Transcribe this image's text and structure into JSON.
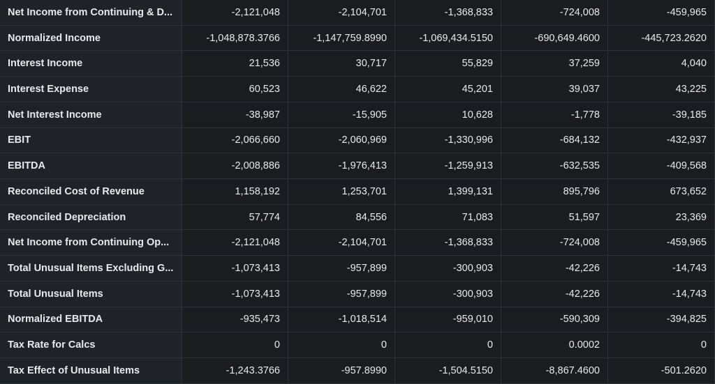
{
  "table": {
    "rows": [
      {
        "label": "Net Income from Continuing & D...",
        "values": [
          "-2,121,048",
          "-2,104,701",
          "-1,368,833",
          "-724,008",
          "-459,965"
        ]
      },
      {
        "label": "Normalized Income",
        "values": [
          "-1,048,878.3766",
          "-1,147,759.8990",
          "-1,069,434.5150",
          "-690,649.4600",
          "-445,723.2620"
        ]
      },
      {
        "label": "Interest Income",
        "values": [
          "21,536",
          "30,717",
          "55,829",
          "37,259",
          "4,040"
        ]
      },
      {
        "label": "Interest Expense",
        "values": [
          "60,523",
          "46,622",
          "45,201",
          "39,037",
          "43,225"
        ]
      },
      {
        "label": "Net Interest Income",
        "values": [
          "-38,987",
          "-15,905",
          "10,628",
          "-1,778",
          "-39,185"
        ]
      },
      {
        "label": "EBIT",
        "values": [
          "-2,066,660",
          "-2,060,969",
          "-1,330,996",
          "-684,132",
          "-432,937"
        ]
      },
      {
        "label": "EBITDA",
        "values": [
          "-2,008,886",
          "-1,976,413",
          "-1,259,913",
          "-632,535",
          "-409,568"
        ]
      },
      {
        "label": "Reconciled Cost of Revenue",
        "values": [
          "1,158,192",
          "1,253,701",
          "1,399,131",
          "895,796",
          "673,652"
        ]
      },
      {
        "label": "Reconciled Depreciation",
        "values": [
          "57,774",
          "84,556",
          "71,083",
          "51,597",
          "23,369"
        ]
      },
      {
        "label": "Net Income from Continuing Op...",
        "values": [
          "-2,121,048",
          "-2,104,701",
          "-1,368,833",
          "-724,008",
          "-459,965"
        ]
      },
      {
        "label": "Total Unusual Items Excluding G...",
        "values": [
          "-1,073,413",
          "-957,899",
          "-300,903",
          "-42,226",
          "-14,743"
        ]
      },
      {
        "label": "Total Unusual Items",
        "values": [
          "-1,073,413",
          "-957,899",
          "-300,903",
          "-42,226",
          "-14,743"
        ]
      },
      {
        "label": "Normalized EBITDA",
        "values": [
          "-935,473",
          "-1,018,514",
          "-959,010",
          "-590,309",
          "-394,825"
        ]
      },
      {
        "label": "Tax Rate for Calcs",
        "values": [
          "0",
          "0",
          "0",
          "0.0002",
          "0"
        ]
      },
      {
        "label": "Tax Effect of Unusual Items",
        "values": [
          "-1,243.3766",
          "-957.8990",
          "-1,504.5150",
          "-8,867.4600",
          "-501.2620"
        ]
      }
    ]
  }
}
